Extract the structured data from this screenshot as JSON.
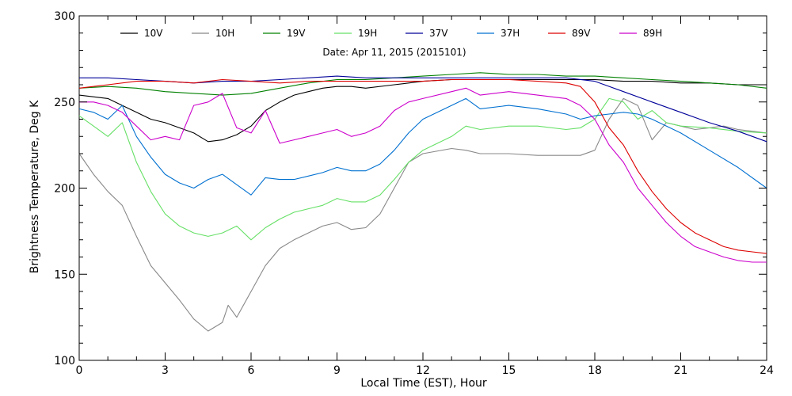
{
  "chart_data": {
    "type": "line",
    "title": "Date: Apr 11, 2015 (2015101)",
    "xlabel": "Local Time (EST), Hour",
    "ylabel": "Brightness Temperature, Deg K",
    "xlim": [
      0,
      24
    ],
    "ylim": [
      100,
      300
    ],
    "x_ticks": [
      "0",
      "3",
      "6",
      "9",
      "12",
      "15",
      "18",
      "21",
      "24"
    ],
    "y_ticks": [
      "100",
      "150",
      "200",
      "250",
      "300"
    ],
    "legend_position": "top",
    "grid": false,
    "series": [
      {
        "name": "10V",
        "color": "#000000",
        "x": [
          0,
          1,
          1.5,
          2,
          2.5,
          3,
          3.5,
          4,
          4.5,
          5,
          5.5,
          6,
          6.5,
          7,
          7.5,
          8,
          8.5,
          9,
          9.5,
          10,
          11,
          12,
          13,
          14,
          15,
          16,
          17,
          18,
          19,
          20,
          21,
          22,
          23,
          24
        ],
        "y": [
          254,
          252,
          248,
          244,
          240,
          238,
          235,
          232,
          227,
          228,
          231,
          236,
          245,
          250,
          254,
          256,
          258,
          259,
          259,
          258,
          260,
          262,
          263,
          263,
          263,
          263,
          263,
          263,
          262,
          262,
          261,
          261,
          260,
          260
        ]
      },
      {
        "name": "10H",
        "color": "#888888",
        "x": [
          0,
          0.5,
          1,
          1.5,
          2,
          2.5,
          3,
          3.5,
          4,
          4.5,
          5,
          5.2,
          5.5,
          6,
          6.5,
          7,
          7.5,
          8,
          8.5,
          9,
          9.5,
          10,
          10.5,
          11,
          11.5,
          12,
          13,
          13.5,
          14,
          15,
          16,
          17,
          17.5,
          18,
          18.5,
          19,
          19.5,
          20,
          20.5,
          21,
          21.5,
          22,
          22.5,
          23,
          23.5,
          24
        ],
        "y": [
          220,
          208,
          198,
          190,
          172,
          155,
          145,
          135,
          124,
          117,
          122,
          132,
          125,
          140,
          155,
          165,
          170,
          174,
          178,
          180,
          176,
          177,
          185,
          200,
          215,
          220,
          223,
          222,
          220,
          220,
          219,
          219,
          219,
          222,
          240,
          252,
          248,
          228,
          238,
          236,
          234,
          235,
          236,
          234,
          233,
          232
        ]
      },
      {
        "name": "19V",
        "color": "#008000",
        "x": [
          0,
          1,
          2,
          3,
          4,
          5,
          6,
          7,
          8,
          9,
          10,
          11,
          12,
          13,
          14,
          15,
          16,
          17,
          18,
          19,
          20,
          21,
          22,
          23,
          24
        ],
        "y": [
          258,
          259,
          258,
          256,
          255,
          254,
          255,
          258,
          261,
          263,
          263,
          264,
          265,
          266,
          267,
          266,
          266,
          265,
          265,
          264,
          263,
          262,
          261,
          260,
          258
        ]
      },
      {
        "name": "19H",
        "color": "#66e066",
        "x": [
          0,
          0.5,
          1,
          1.5,
          2,
          2.5,
          3,
          3.5,
          4,
          4.5,
          5,
          5.5,
          6,
          6.5,
          7,
          7.5,
          8,
          8.5,
          9,
          9.5,
          10,
          10.5,
          11,
          11.5,
          12,
          13,
          13.5,
          14,
          15,
          16,
          17,
          17.5,
          18,
          18.5,
          19,
          19.5,
          20,
          20.5,
          21,
          22,
          23,
          24
        ],
        "y": [
          242,
          236,
          230,
          238,
          215,
          198,
          185,
          178,
          174,
          172,
          174,
          178,
          170,
          177,
          182,
          186,
          188,
          190,
          194,
          192,
          192,
          196,
          205,
          215,
          222,
          230,
          236,
          234,
          236,
          236,
          234,
          235,
          240,
          252,
          250,
          240,
          245,
          238,
          236,
          235,
          233,
          232
        ]
      },
      {
        "name": "37V",
        "color": "#000099",
        "x": [
          0,
          1,
          2,
          3,
          4,
          5,
          6,
          7,
          8,
          9,
          10,
          11,
          12,
          13,
          14,
          15,
          16,
          17,
          18,
          19,
          20,
          21,
          22,
          23,
          24
        ],
        "y": [
          264,
          264,
          263,
          262,
          261,
          262,
          262,
          263,
          264,
          265,
          264,
          264,
          264,
          264,
          264,
          264,
          264,
          264,
          262,
          256,
          250,
          244,
          238,
          233,
          227
        ]
      },
      {
        "name": "37H",
        "color": "#0070d0",
        "x": [
          0,
          0.5,
          1,
          1.5,
          2,
          2.5,
          3,
          3.5,
          4,
          4.5,
          5,
          5.5,
          6,
          6.5,
          7,
          7.5,
          8,
          8.5,
          9,
          9.5,
          10,
          10.5,
          11,
          11.5,
          12,
          13,
          13.5,
          14,
          15,
          16,
          17,
          17.5,
          18,
          18.5,
          19,
          19.5,
          20,
          21,
          22,
          23,
          24
        ],
        "y": [
          246,
          244,
          240,
          248,
          230,
          218,
          208,
          203,
          200,
          205,
          208,
          202,
          196,
          206,
          205,
          205,
          207,
          209,
          212,
          210,
          210,
          214,
          222,
          232,
          240,
          248,
          252,
          246,
          248,
          246,
          243,
          240,
          242,
          243,
          244,
          243,
          240,
          232,
          222,
          212,
          200
        ]
      },
      {
        "name": "89V",
        "color": "#dd0000",
        "x": [
          0,
          1,
          2,
          3,
          4,
          5,
          6,
          7,
          8,
          9,
          10,
          11,
          12,
          13,
          14,
          15,
          16,
          17,
          17.5,
          18,
          18.5,
          19,
          19.5,
          20,
          20.5,
          21,
          21.5,
          22,
          22.5,
          23,
          23.5,
          24
        ],
        "y": [
          258,
          260,
          262,
          262,
          261,
          263,
          262,
          261,
          262,
          262,
          262,
          262,
          262,
          263,
          263,
          263,
          262,
          261,
          259,
          250,
          235,
          225,
          210,
          198,
          188,
          180,
          174,
          170,
          166,
          164,
          163,
          162
        ]
      },
      {
        "name": "89H",
        "color": "#cc00cc",
        "x": [
          0,
          0.5,
          1,
          1.5,
          2,
          2.5,
          3,
          3.5,
          4,
          4.5,
          5,
          5.5,
          6,
          6.5,
          7,
          7.5,
          8,
          8.5,
          9,
          9.5,
          10,
          10.5,
          11,
          11.5,
          12,
          13,
          13.5,
          14,
          15,
          16,
          17,
          17.5,
          18,
          18.5,
          19,
          19.5,
          20,
          20.5,
          21,
          21.5,
          22,
          22.5,
          23,
          23.5,
          24
        ],
        "y": [
          250,
          250,
          248,
          244,
          236,
          228,
          230,
          228,
          248,
          250,
          255,
          235,
          232,
          245,
          226,
          228,
          230,
          232,
          234,
          230,
          232,
          236,
          245,
          250,
          252,
          256,
          258,
          254,
          256,
          254,
          252,
          248,
          240,
          225,
          215,
          200,
          190,
          180,
          172,
          166,
          163,
          160,
          158,
          157,
          157
        ]
      }
    ]
  }
}
